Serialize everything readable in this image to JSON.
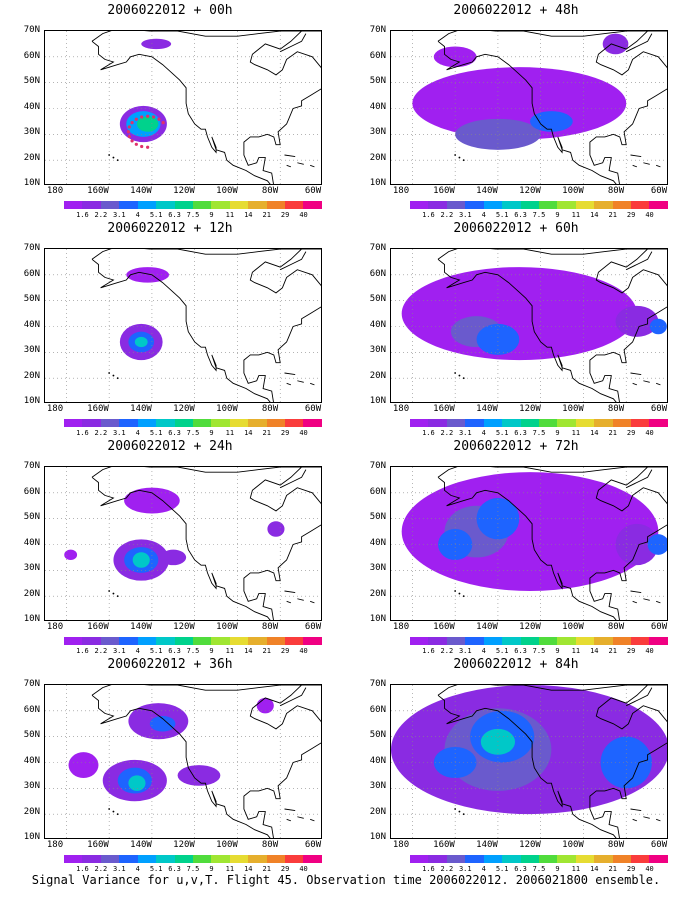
{
  "panels": [
    {
      "title": "2006022012 + 00h",
      "lead_hours": 0,
      "spread": 0
    },
    {
      "title": "2006022012 + 48h",
      "lead_hours": 48,
      "spread": 4
    },
    {
      "title": "2006022012 + 12h",
      "lead_hours": 12,
      "spread": 1
    },
    {
      "title": "2006022012 + 60h",
      "lead_hours": 60,
      "spread": 5
    },
    {
      "title": "2006022012 + 24h",
      "lead_hours": 24,
      "spread": 2
    },
    {
      "title": "2006022012 + 72h",
      "lead_hours": 72,
      "spread": 6
    },
    {
      "title": "2006022012 + 36h",
      "lead_hours": 36,
      "spread": 3
    },
    {
      "title": "2006022012 + 84h",
      "lead_hours": 84,
      "spread": 7
    }
  ],
  "axes": {
    "y_labels": [
      "70N",
      "60N",
      "50N",
      "40N",
      "30N",
      "20N",
      "10N"
    ],
    "x_labels": [
      "180",
      "160W",
      "140W",
      "120W",
      "100W",
      "80W",
      "60W"
    ]
  },
  "colorbar": {
    "labels": [
      "1.6",
      "2.2",
      "3.1",
      "4",
      "5.1",
      "6.3",
      "7.5",
      "9",
      "11",
      "14",
      "21",
      "29",
      "40"
    ],
    "colors": [
      "#a020f0",
      "#8a2be2",
      "#6a5acd",
      "#1e64ff",
      "#00a0ff",
      "#00c8c8",
      "#00d28c",
      "#50dc3c",
      "#a0e632",
      "#e6dc32",
      "#e6af2d",
      "#f08228",
      "#fa3c3c",
      "#f00082"
    ]
  },
  "footer": "Signal Variance for u,v,T. Flight 45. Observation time 2006022012. 2006021800 ensemble."
}
